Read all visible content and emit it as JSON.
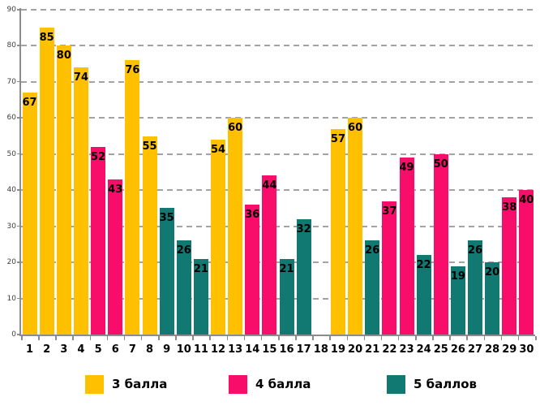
{
  "chart_data": {
    "type": "bar",
    "title": "",
    "xlabel": "",
    "ylabel": "",
    "ylim": [
      0,
      90
    ],
    "y_ticks": [
      0,
      10,
      20,
      30,
      40,
      50,
      60,
      70,
      80,
      90
    ],
    "grid": "horizontal-dashed",
    "legend_position": "bottom",
    "categories": [
      "1",
      "2",
      "3",
      "4",
      "5",
      "6",
      "7",
      "8",
      "9",
      "10",
      "11",
      "12",
      "13",
      "14",
      "15",
      "16",
      "17",
      "18",
      "19",
      "20",
      "21",
      "22",
      "23",
      "24",
      "25",
      "26",
      "27",
      "28",
      "29",
      "30"
    ],
    "series": [
      {
        "name": "3 балла",
        "color": "#FFC000"
      },
      {
        "name": "4 балла",
        "color": "#F80D6B"
      },
      {
        "name": "5 баллов",
        "color": "#117872"
      }
    ],
    "bars": [
      {
        "category": "1",
        "value": 67,
        "series": "3 балла"
      },
      {
        "category": "2",
        "value": 85,
        "series": "3 балла"
      },
      {
        "category": "3",
        "value": 80,
        "series": "3 балла"
      },
      {
        "category": "4",
        "value": 74,
        "series": "3 балла"
      },
      {
        "category": "5",
        "value": 52,
        "series": "4 балла"
      },
      {
        "category": "6",
        "value": 43,
        "series": "4 балла"
      },
      {
        "category": "7",
        "value": 76,
        "series": "3 балла"
      },
      {
        "category": "8",
        "value": 55,
        "series": "3 балла"
      },
      {
        "category": "9",
        "value": 35,
        "series": "5 баллов"
      },
      {
        "category": "10",
        "value": 26,
        "series": "5 баллов"
      },
      {
        "category": "11",
        "value": 21,
        "series": "5 баллов"
      },
      {
        "category": "12",
        "value": 54,
        "series": "3 балла"
      },
      {
        "category": "13",
        "value": 60,
        "series": "3 балла"
      },
      {
        "category": "14",
        "value": 36,
        "series": "4 балла"
      },
      {
        "category": "15",
        "value": 44,
        "series": "4 балла"
      },
      {
        "category": "16",
        "value": 21,
        "series": "5 баллов"
      },
      {
        "category": "17",
        "value": 32,
        "series": "5 баллов"
      },
      {
        "category": "18",
        "value": null,
        "series": null
      },
      {
        "category": "19",
        "value": 57,
        "series": "3 балла"
      },
      {
        "category": "20",
        "value": 60,
        "series": "3 балла"
      },
      {
        "category": "21",
        "value": 26,
        "series": "5 баллов"
      },
      {
        "category": "22",
        "value": 37,
        "series": "4 балла"
      },
      {
        "category": "23",
        "value": 49,
        "series": "4 балла"
      },
      {
        "category": "24",
        "value": 22,
        "series": "5 баллов"
      },
      {
        "category": "25",
        "value": 50,
        "series": "4 балла"
      },
      {
        "category": "26",
        "value": 19,
        "series": "5 баллов"
      },
      {
        "category": "27",
        "value": 26,
        "series": "5 баллов"
      },
      {
        "category": "28",
        "value": 20,
        "series": "5 баллов"
      },
      {
        "category": "29",
        "value": 38,
        "series": "4 балла"
      },
      {
        "category": "30",
        "value": 40,
        "series": "4 балла"
      }
    ]
  },
  "colors": {
    "grid": "#A3A3A3",
    "axis": "#8C8C8C",
    "value_label": "#000000",
    "background": "#FFFFFF"
  }
}
